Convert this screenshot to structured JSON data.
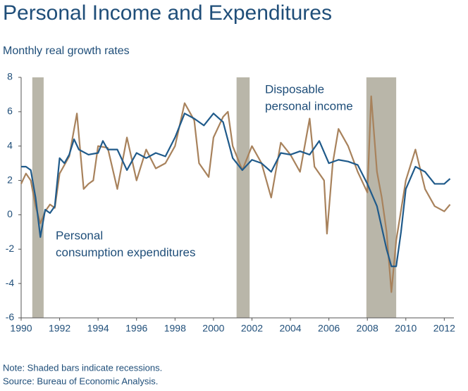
{
  "chart_data": {
    "type": "line",
    "title": "Personal Income and Expenditures",
    "subtitle": "Monthly real growth rates",
    "notes": [
      "Note: Shaded bars indicate recessions.",
      "Source: Bureau of Economic Analysis."
    ],
    "xlim": [
      1990,
      2012.5
    ],
    "ylim": [
      -6,
      8
    ],
    "xticks": [
      1990,
      1992,
      1994,
      1996,
      1998,
      2000,
      2002,
      2004,
      2006,
      2008,
      2010,
      2012
    ],
    "yticks": [
      -6,
      -4,
      -2,
      0,
      2,
      4,
      6,
      8
    ],
    "recessions": [
      [
        1990.58,
        1991.17
      ],
      [
        2001.2,
        2001.88
      ],
      [
        2007.95,
        2009.5
      ]
    ],
    "recession_color": "#b9b6a9",
    "series": [
      {
        "name": "Disposable personal income",
        "name_lines": [
          "Disposable",
          "personal income"
        ],
        "color": "#1f5a8a",
        "x": [
          1990,
          1990.25,
          1990.5,
          1990.75,
          1991.0,
          1991.25,
          1991.5,
          1991.75,
          1992.0,
          1992.25,
          1992.5,
          1992.75,
          1993.0,
          1993.5,
          1994.0,
          1994.25,
          1994.5,
          1995.0,
          1995.5,
          1996.0,
          1996.5,
          1997.0,
          1997.5,
          1998.0,
          1998.5,
          1999.0,
          1999.5,
          2000.0,
          2000.5,
          2001.0,
          2001.5,
          2002.0,
          2002.5,
          2003.0,
          2003.5,
          2004.0,
          2004.5,
          2005.0,
          2005.5,
          2006.0,
          2006.5,
          2007.0,
          2007.5,
          2008.0,
          2008.5,
          2009.0,
          2009.25,
          2009.5,
          2009.75,
          2010.0,
          2010.5,
          2011.0,
          2011.5,
          2012.0,
          2012.3
        ],
        "values": [
          2.8,
          2.8,
          2.6,
          1.0,
          -1.3,
          0.3,
          0.1,
          0.5,
          3.3,
          3.0,
          3.5,
          4.4,
          3.8,
          3.5,
          3.6,
          4.3,
          3.8,
          3.8,
          2.6,
          3.6,
          3.3,
          3.6,
          3.4,
          4.5,
          5.9,
          5.6,
          5.2,
          5.9,
          5.4,
          3.3,
          2.6,
          3.2,
          3.0,
          2.5,
          3.6,
          3.5,
          3.7,
          3.5,
          4.3,
          3.0,
          3.2,
          3.1,
          2.9,
          1.8,
          0.5,
          -2.0,
          -3.0,
          -3.0,
          -1.0,
          1.5,
          2.8,
          2.5,
          1.8,
          1.8,
          2.1
        ]
      },
      {
        "name": "Personal consumption expenditures",
        "name_lines": [
          "Personal",
          "consumption expenditures"
        ],
        "color": "#a8825c",
        "x": [
          1990,
          1990.25,
          1990.5,
          1990.75,
          1991.0,
          1991.25,
          1991.5,
          1991.75,
          1992.0,
          1992.5,
          1992.9,
          1993.25,
          1993.5,
          1993.75,
          1994.0,
          1994.5,
          1995.0,
          1995.5,
          1996.0,
          1996.5,
          1997.0,
          1997.5,
          1998.0,
          1998.5,
          1999.0,
          1999.25,
          1999.75,
          2000.0,
          2000.5,
          2000.75,
          2001.0,
          2001.5,
          2002.0,
          2002.5,
          2003.0,
          2003.5,
          2004.0,
          2004.5,
          2005.0,
          2005.25,
          2005.75,
          2005.9,
          2006.2,
          2006.5,
          2007.0,
          2007.5,
          2008.0,
          2008.2,
          2008.5,
          2008.75,
          2009.0,
          2009.25,
          2009.5,
          2010.0,
          2010.5,
          2011.0,
          2011.5,
          2012.0,
          2012.3
        ],
        "values": [
          1.8,
          2.4,
          2.0,
          0.5,
          -0.5,
          0.2,
          0.6,
          0.4,
          2.4,
          3.4,
          5.9,
          1.5,
          1.8,
          2.0,
          4.0,
          3.9,
          1.5,
          4.5,
          2.0,
          3.8,
          2.7,
          3.0,
          4.0,
          6.5,
          5.5,
          3.0,
          2.2,
          4.5,
          5.7,
          6.0,
          4.0,
          2.6,
          4.0,
          3.0,
          1.0,
          4.2,
          3.5,
          2.5,
          5.6,
          2.8,
          2.0,
          -1.1,
          3.0,
          5.0,
          4.0,
          2.5,
          1.3,
          6.9,
          2.5,
          1.0,
          -1.0,
          -4.5,
          -1.5,
          2.0,
          3.8,
          1.5,
          0.5,
          0.2,
          0.6
        ]
      }
    ]
  }
}
